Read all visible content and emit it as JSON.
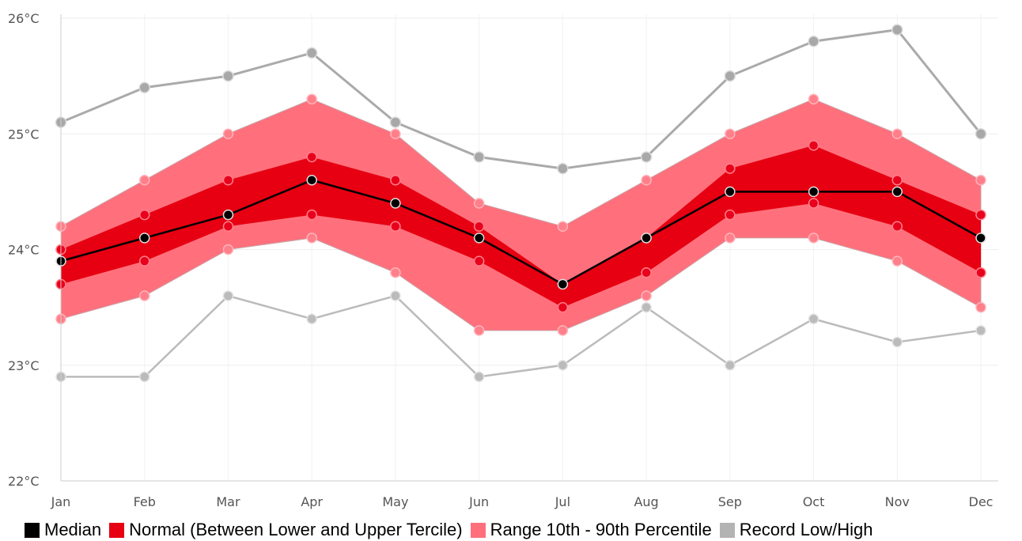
{
  "chart_data": {
    "type": "line",
    "categories": [
      "Jan",
      "Feb",
      "Mar",
      "Apr",
      "May",
      "Jun",
      "Jul",
      "Aug",
      "Sep",
      "Oct",
      "Nov",
      "Dec"
    ],
    "ylim": [
      22,
      26
    ],
    "yticks": [
      22,
      23,
      24,
      25,
      26
    ],
    "ytick_labels": [
      "22°C",
      "23°C",
      "24°C",
      "25°C",
      "26°C"
    ],
    "grid": true,
    "legend_position": "bottom",
    "series": [
      {
        "name": "Median",
        "role": "median",
        "color": "#000000",
        "values": [
          23.9,
          24.1,
          24.3,
          24.6,
          24.4,
          24.1,
          23.7,
          24.1,
          24.5,
          24.5,
          24.5,
          24.1
        ]
      },
      {
        "name": "Normal (Between Lower and Upper Tercile)",
        "role": "tercile-band",
        "color": "#e60012",
        "lower": [
          23.7,
          23.9,
          24.2,
          24.3,
          24.2,
          23.9,
          23.5,
          23.8,
          24.3,
          24.4,
          24.2,
          23.8
        ],
        "upper": [
          24.0,
          24.3,
          24.6,
          24.8,
          24.6,
          24.2,
          23.7,
          24.1,
          24.7,
          24.9,
          24.6,
          24.3
        ]
      },
      {
        "name": "Range 10th - 90th Percentile",
        "role": "percentile-band",
        "color": "#ff707c",
        "lower": [
          23.4,
          23.6,
          24.0,
          24.1,
          23.8,
          23.3,
          23.3,
          23.6,
          24.1,
          24.1,
          23.9,
          23.5
        ],
        "upper": [
          24.2,
          24.6,
          25.0,
          25.3,
          25.0,
          24.4,
          24.2,
          24.6,
          25.0,
          25.3,
          25.0,
          24.6
        ]
      },
      {
        "name": "Record Low/High",
        "role": "record",
        "color": "#b3b3b3",
        "lower": [
          22.9,
          22.9,
          23.6,
          23.4,
          23.6,
          22.9,
          23.0,
          23.5,
          23.0,
          23.4,
          23.2,
          23.3
        ],
        "upper": [
          25.1,
          25.4,
          25.5,
          25.7,
          25.1,
          24.8,
          24.7,
          24.8,
          25.5,
          25.8,
          25.9,
          25.0
        ]
      }
    ]
  },
  "legend": {
    "items": [
      {
        "label": "Median",
        "color": "#000000"
      },
      {
        "label": "Normal (Between Lower and Upper Tercile)",
        "color": "#e60012"
      },
      {
        "label": "Range 10th - 90th Percentile",
        "color": "#ff707c"
      },
      {
        "label": "Record Low/High",
        "color": "#b3b3b3"
      }
    ]
  }
}
